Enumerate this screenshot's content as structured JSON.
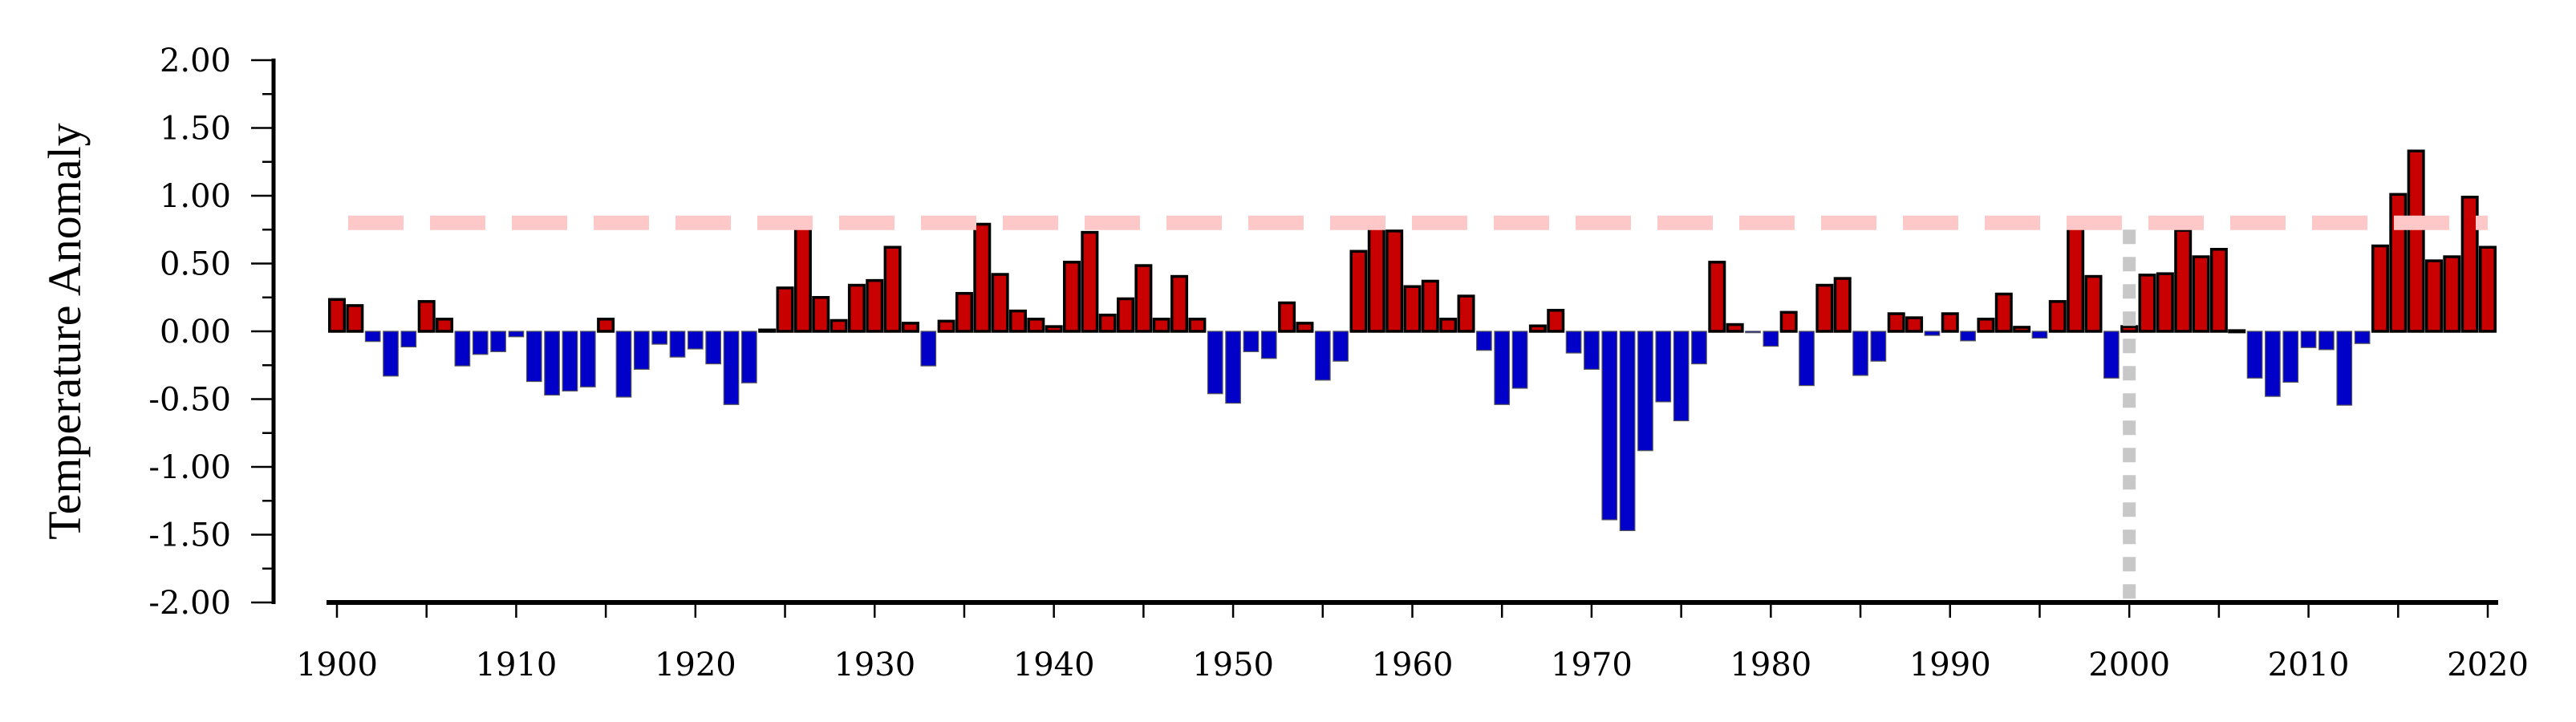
{
  "chart_data": {
    "type": "bar",
    "title": "",
    "xlabel": "",
    "ylabel": "Temperature Anomaly",
    "ylim": [
      -2.0,
      2.0
    ],
    "xlim": [
      1900,
      2020
    ],
    "grid": false,
    "legend": "none",
    "y_ticks": [
      "2.00",
      "1.50",
      "1.00",
      "0.50",
      "0.00",
      "-0.50",
      "-1.00",
      "-1.50",
      "-2.00"
    ],
    "y_tick_values": [
      2.0,
      1.5,
      1.0,
      0.5,
      0.0,
      -0.5,
      -1.0,
      -1.5,
      -2.0
    ],
    "x_ticks": [
      "1900",
      "1910",
      "1920",
      "1930",
      "1940",
      "1950",
      "1960",
      "1970",
      "1980",
      "1990",
      "2000",
      "2010",
      "2020"
    ],
    "positive_color": "#c80000",
    "negative_color": "#0000c8",
    "reference_line": {
      "value": 0.8,
      "color": "#ffc8c8",
      "style": "dashed"
    },
    "marker_line": {
      "x": 2000,
      "color": "#c8c8c8",
      "style": "dotted"
    },
    "start_year": 1900,
    "values": [
      0.235,
      0.19,
      -0.075,
      -0.33,
      -0.115,
      0.22,
      0.09,
      -0.255,
      -0.17,
      -0.15,
      -0.04,
      -0.37,
      -0.47,
      -0.44,
      -0.41,
      0.09,
      -0.485,
      -0.28,
      -0.095,
      -0.19,
      -0.13,
      -0.24,
      -0.54,
      -0.38,
      0.01,
      0.32,
      0.81,
      0.25,
      0.08,
      0.34,
      0.375,
      0.62,
      0.06,
      -0.255,
      0.075,
      0.28,
      0.79,
      0.42,
      0.15,
      0.09,
      0.035,
      0.51,
      0.73,
      0.12,
      0.24,
      0.485,
      0.09,
      0.405,
      0.09,
      -0.46,
      -0.53,
      -0.15,
      -0.2,
      0.21,
      0.06,
      -0.36,
      -0.22,
      0.59,
      0.78,
      0.74,
      0.33,
      0.37,
      0.09,
      0.26,
      -0.14,
      -0.54,
      -0.42,
      0.04,
      0.155,
      -0.16,
      -0.28,
      -1.39,
      -1.47,
      -0.88,
      -0.52,
      -0.66,
      -0.24,
      0.51,
      0.05,
      -0.01,
      -0.11,
      0.14,
      -0.4,
      0.34,
      0.39,
      -0.325,
      -0.22,
      0.13,
      0.1,
      -0.03,
      0.13,
      -0.07,
      0.09,
      0.275,
      0.03,
      -0.05,
      0.22,
      0.765,
      0.405,
      -0.345,
      0.035,
      0.415,
      0.425,
      0.745,
      0.55,
      0.605,
      0.005,
      -0.345,
      -0.48,
      -0.375,
      -0.12,
      -0.135,
      -0.545,
      -0.09,
      0.63,
      1.01,
      1.33,
      0.52,
      0.55,
      0.99,
      0.62
    ]
  }
}
